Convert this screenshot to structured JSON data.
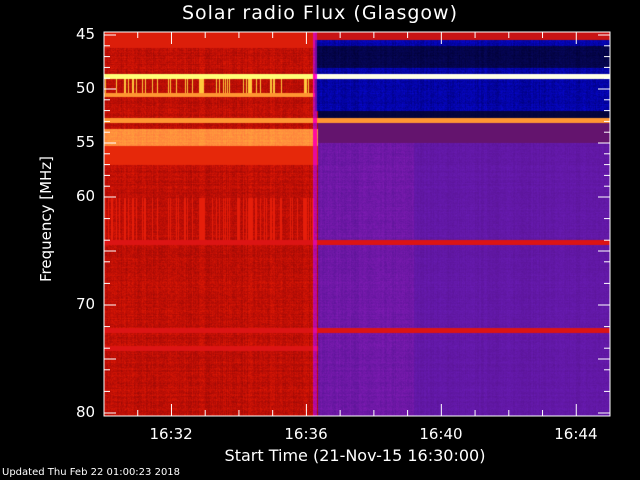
{
  "chart_data": {
    "type": "heatmap",
    "title": "Solar radio Flux (Glasgow)",
    "xlabel": "Start Time (21-Nov-15 16:30:00)",
    "ylabel": "Frequency [MHz]",
    "xlim": [
      "16:30",
      "16:45"
    ],
    "ylim": [
      45,
      80
    ],
    "y_inverted": true,
    "xticks": [
      "16:32",
      "16:36",
      "16:40",
      "16:44"
    ],
    "yticks": [
      45,
      50,
      55,
      60,
      70,
      80
    ],
    "transition_time": "16:36:15",
    "secondary_transition_time": "16:39:10",
    "bands": [
      {
        "freq": 48.8,
        "before": "yellow",
        "after": "white"
      },
      {
        "freq": 50.5,
        "before": "orange",
        "after": "blue"
      },
      {
        "freq": 52.9,
        "before": "orange",
        "after": "orange"
      },
      {
        "freq": 54.5,
        "before": "light-orange",
        "after": "purple"
      },
      {
        "freq": 64.2,
        "before": "red",
        "after": "red"
      },
      {
        "freq": 72.3,
        "before": "red",
        "after": "red"
      },
      {
        "freq": 74.0,
        "before": "red",
        "after": "purple"
      }
    ],
    "colors": {
      "background_before": "#c01000",
      "low_after": "#5a1ea0",
      "high_after": "#1010d0",
      "hot": "#ffff80"
    }
  },
  "footer": {
    "updated": "Updated Thu Feb 22 01:00:23 2018"
  }
}
